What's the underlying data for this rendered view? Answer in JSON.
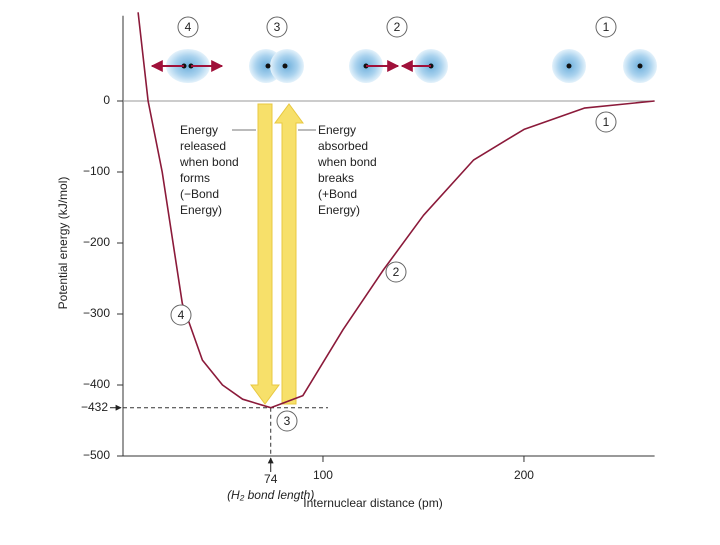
{
  "chart_data": {
    "type": "line",
    "y_label": "Potential energy (kJ/mol)",
    "x_label": "Internuclear distance (pm)",
    "x": [
      8,
      13,
      20,
      30,
      40,
      50,
      60,
      74,
      90,
      110,
      130,
      150,
      175,
      200,
      230,
      265
    ],
    "series": [
      {
        "name": "H2",
        "color": "#8b1a3a",
        "values": [
          125,
          0,
          -100,
          -285,
          -365,
          -400,
          -420,
          -432,
          -415,
          -322,
          -238,
          -161,
          -83,
          -40,
          -10,
          0
        ]
      }
    ],
    "xlim": [
      0,
      265
    ],
    "ylim": [
      -500,
      120
    ],
    "xticks": [
      100,
      200
    ],
    "yticks": [
      0,
      {
        "value": -100,
        "label": "−100"
      },
      {
        "value": -200,
        "label": "−200"
      },
      {
        "value": -300,
        "label": "−300"
      },
      {
        "value": -400,
        "label": "−400"
      },
      {
        "value": -500,
        "label": "−500"
      }
    ],
    "bond_length": 74,
    "bond_length_label": "(H₂ bond length)",
    "min_energy": {
      "value": -432,
      "label": "−432"
    },
    "released_text": [
      "Energy",
      "released",
      "when bond",
      "forms",
      "(−Bond",
      "Energy)"
    ],
    "absorbed_text": [
      "Energy",
      "absorbed",
      "when bond",
      "breaks",
      "(+Bond",
      "Energy)"
    ],
    "top_labels": [
      "4",
      "3",
      "2",
      "1"
    ],
    "curve_labels": [
      "1",
      "2",
      "3",
      "4"
    ]
  }
}
